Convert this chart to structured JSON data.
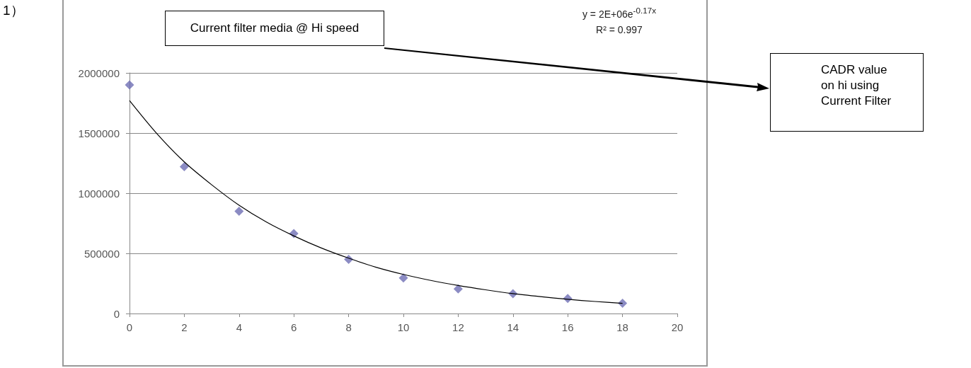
{
  "chart_data": {
    "type": "scatter",
    "xlim": [
      0,
      20
    ],
    "xticks": [
      0,
      2,
      4,
      6,
      8,
      10,
      12,
      14,
      16,
      18,
      20
    ],
    "ylim": [
      0,
      2000000
    ],
    "yticks": [
      0,
      500000,
      1000000,
      1500000,
      2000000
    ],
    "grid": "y",
    "x": [
      0,
      2,
      4,
      6,
      8,
      10,
      12,
      14,
      16,
      18
    ],
    "series": [
      {
        "color": "#6e6eb4",
        "marker": "diamond",
        "values": [
          1900000,
          1220000,
          850000,
          665000,
          450000,
          295000,
          205000,
          165000,
          125000,
          85000
        ]
      },
      {
        "type": "line",
        "color": "#000000",
        "marker": "none",
        "x": [
          0,
          1,
          2,
          3,
          4,
          5,
          6,
          7,
          8,
          9,
          10,
          11,
          12,
          13,
          14,
          15,
          16,
          17,
          18
        ],
        "values": [
          1770000,
          1495000,
          1260000,
          1070000,
          900000,
          760000,
          645000,
          545000,
          460000,
          385000,
          325000,
          275000,
          233000,
          197000,
          165000,
          140000,
          118000,
          100000,
          85000
        ]
      }
    ],
    "annotations": [
      "1）",
      "Current filter media @ Hi speed",
      "y = 2E+06e$^{-0.17x}$",
      "R² = 0.997",
      "CADR value on hi using Current Filter"
    ]
  }
}
